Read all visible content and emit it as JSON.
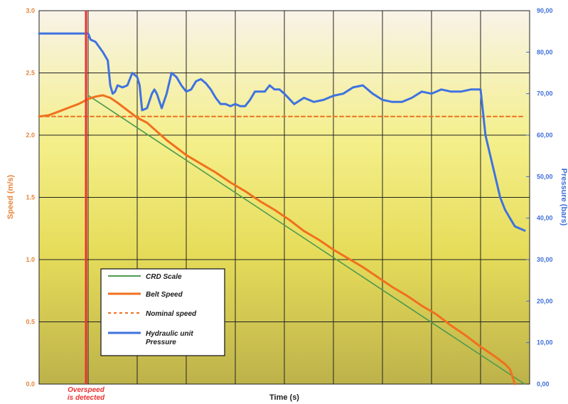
{
  "chart_data": {
    "type": "line",
    "title": "",
    "xlabel": "Time (s)",
    "ylabel": "Speed (m/s)",
    "y2label": "Pressure (bars)",
    "xlim": [
      0,
      10
    ],
    "ylim": [
      0,
      3
    ],
    "y2lim": [
      0,
      90
    ],
    "y_ticks": [
      "0.0",
      "0.5",
      "1.0",
      "1.5",
      "2.0",
      "2.5",
      "3.0"
    ],
    "y2_ticks": [
      "0,00",
      "10,00",
      "20,00",
      "30,00",
      "40,00",
      "50,00",
      "60,00",
      "70,00",
      "80,00",
      "90,00"
    ],
    "grid": true,
    "legend_position": "bottom-left",
    "colors": {
      "speed_axis": "#e8843a",
      "pressure_axis": "#3f6fd8",
      "crd": "#4f9a4f",
      "belt": "#f0701e",
      "nominal": "#f0701e",
      "hydraulic": "#3f72e0",
      "overspeed_marker": "#ee3030",
      "grid": "#222222"
    },
    "series": [
      {
        "name": "CRD Scale",
        "axis": "left",
        "style": "solid",
        "x": [
          1.0,
          9.9
        ],
        "y": [
          2.32,
          0.0
        ]
      },
      {
        "name": "Belt Speed",
        "axis": "left",
        "style": "solid-thick",
        "x": [
          0.0,
          0.2,
          0.4,
          0.6,
          0.8,
          1.0,
          1.15,
          1.3,
          1.45,
          1.6,
          1.8,
          2.0,
          2.2,
          2.4,
          2.6,
          2.8,
          3.0,
          3.3,
          3.6,
          3.9,
          4.2,
          4.5,
          4.8,
          5.1,
          5.4,
          5.7,
          6.0,
          6.3,
          6.6,
          6.9,
          7.2,
          7.5,
          7.8,
          8.1,
          8.4,
          8.7,
          9.0,
          9.3,
          9.5,
          9.6,
          9.7
        ],
        "y": [
          2.15,
          2.16,
          2.19,
          2.22,
          2.25,
          2.29,
          2.31,
          2.32,
          2.3,
          2.26,
          2.2,
          2.14,
          2.1,
          2.03,
          1.96,
          1.9,
          1.84,
          1.77,
          1.7,
          1.62,
          1.55,
          1.47,
          1.4,
          1.32,
          1.23,
          1.16,
          1.08,
          1.01,
          0.94,
          0.86,
          0.78,
          0.71,
          0.63,
          0.56,
          0.47,
          0.39,
          0.3,
          0.22,
          0.16,
          0.12,
          0.0
        ]
      },
      {
        "name": "Nominal speed",
        "axis": "left",
        "style": "dashed",
        "x": [
          0.0,
          9.9
        ],
        "y": [
          2.15,
          2.15
        ]
      },
      {
        "name": "Hydraulic unit\nPressure",
        "legend_lines": [
          "Hydraulic unit",
          "Pressure"
        ],
        "axis": "right",
        "style": "solid-thick",
        "x": [
          0.0,
          1.0,
          1.05,
          1.15,
          1.3,
          1.4,
          1.45,
          1.5,
          1.55,
          1.6,
          1.7,
          1.8,
          1.9,
          2.0,
          2.05,
          2.1,
          2.2,
          2.3,
          2.35,
          2.4,
          2.5,
          2.6,
          2.7,
          2.8,
          2.9,
          3.0,
          3.1,
          3.2,
          3.3,
          3.4,
          3.5,
          3.6,
          3.7,
          3.8,
          3.9,
          4.0,
          4.1,
          4.2,
          4.3,
          4.4,
          4.5,
          4.6,
          4.7,
          4.8,
          4.9,
          5.0,
          5.2,
          5.4,
          5.6,
          5.8,
          6.0,
          6.2,
          6.4,
          6.6,
          6.8,
          7.0,
          7.2,
          7.4,
          7.6,
          7.8,
          8.0,
          8.2,
          8.4,
          8.6,
          8.8,
          9.0,
          9.1,
          9.2,
          9.3,
          9.4,
          9.5,
          9.6,
          9.7,
          9.8,
          9.9
        ],
        "y": [
          84.5,
          84.5,
          83.0,
          82.5,
          80.0,
          78.0,
          72.0,
          70.0,
          70.5,
          72.0,
          71.5,
          72.0,
          75.0,
          74.0,
          72.0,
          66.0,
          66.5,
          70.0,
          71.0,
          70.0,
          66.5,
          70.0,
          75.0,
          74.0,
          72.0,
          70.5,
          71.0,
          73.0,
          73.5,
          72.5,
          71.0,
          69.0,
          67.5,
          67.5,
          67.0,
          67.5,
          67.0,
          67.0,
          68.5,
          70.5,
          70.5,
          70.5,
          72.0,
          71.0,
          71.0,
          70.0,
          67.5,
          69.0,
          68.0,
          68.5,
          69.5,
          70.0,
          71.5,
          72.0,
          70.0,
          68.5,
          68.0,
          68.0,
          69.0,
          70.5,
          70.0,
          71.0,
          70.5,
          70.5,
          71.0,
          71.0,
          60.0,
          55.0,
          50.0,
          45.0,
          42.0,
          40.0,
          38.0,
          37.5,
          37.0
        ]
      }
    ],
    "annotations": [
      {
        "lines": [
          "Overspeed",
          "is detected"
        ],
        "x": 1.0,
        "color": "#ee3030"
      }
    ]
  }
}
